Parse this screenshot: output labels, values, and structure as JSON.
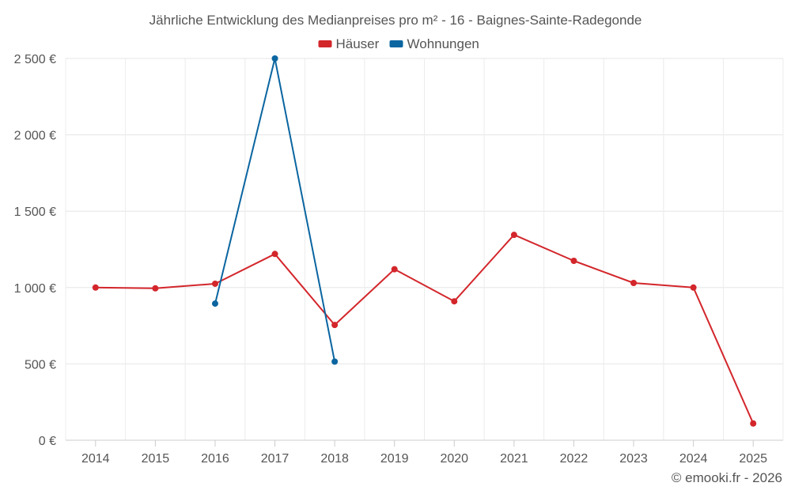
{
  "chart_data": {
    "type": "line",
    "title": "Jährliche Entwicklung des Medianpreises pro m² - 16 - Baignes-Sainte-Radegonde",
    "xlabel": "",
    "ylabel": "",
    "categories": [
      "2014",
      "2015",
      "2016",
      "2017",
      "2018",
      "2019",
      "2020",
      "2021",
      "2022",
      "2023",
      "2024",
      "2025"
    ],
    "ylim": [
      0,
      2500
    ],
    "yticks": [
      0,
      500,
      1000,
      1500,
      2000,
      2500
    ],
    "ytick_labels": [
      "0 €",
      "500 €",
      "1 000 €",
      "1 500 €",
      "2 000 €",
      "2 500 €"
    ],
    "grid": true,
    "legend_position": "top-center",
    "series": [
      {
        "name": "Häuser",
        "color": "#d3262b",
        "values": [
          1000,
          995,
          1025,
          1220,
          755,
          1120,
          910,
          1345,
          1175,
          1030,
          1000,
          110
        ]
      },
      {
        "name": "Wohnungen",
        "color": "#0a65a0",
        "values": [
          null,
          null,
          895,
          2500,
          515,
          null,
          null,
          null,
          null,
          null,
          null,
          null
        ]
      }
    ]
  },
  "credit": "© emooki.fr - 2026"
}
